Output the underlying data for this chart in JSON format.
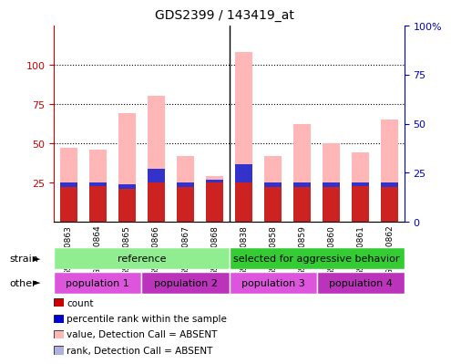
{
  "title": "GDS2399 / 143419_at",
  "samples": [
    "GSM120863",
    "GSM120864",
    "GSM120865",
    "GSM120866",
    "GSM120867",
    "GSM120868",
    "GSM120838",
    "GSM120858",
    "GSM120859",
    "GSM120860",
    "GSM120861",
    "GSM120862"
  ],
  "pink_bars": [
    47,
    46,
    69,
    80,
    42,
    29,
    108,
    42,
    62,
    50,
    44,
    65
  ],
  "red_bars": [
    25,
    25,
    24,
    25,
    25,
    25,
    25,
    25,
    25,
    25,
    25,
    25
  ],
  "blue_bars": [
    22,
    23,
    21,
    34,
    22,
    27,
    37,
    22,
    22,
    22,
    23,
    22
  ],
  "ylim_left": [
    0,
    125
  ],
  "ylim_right": [
    0,
    100
  ],
  "strain_labels": [
    "reference",
    "selected for aggressive behavior"
  ],
  "strain_colors": [
    "#90ee90",
    "#33cc33"
  ],
  "other_labels": [
    "population 1",
    "population 2",
    "population 3",
    "population 4"
  ],
  "other_colors": [
    "#dd55dd",
    "#bb33bb",
    "#dd55dd",
    "#bb33bb"
  ],
  "legend_items": [
    {
      "color": "#cc0000",
      "label": "count"
    },
    {
      "color": "#0000cc",
      "label": "percentile rank within the sample"
    },
    {
      "color": "#ffb6b6",
      "label": "value, Detection Call = ABSENT"
    },
    {
      "color": "#b0b0e0",
      "label": "rank, Detection Call = ABSENT"
    }
  ],
  "bar_width": 0.6,
  "bg_color": "#ffffff",
  "left_tick_color": "#cc0000",
  "right_tick_color": "#0000cc"
}
